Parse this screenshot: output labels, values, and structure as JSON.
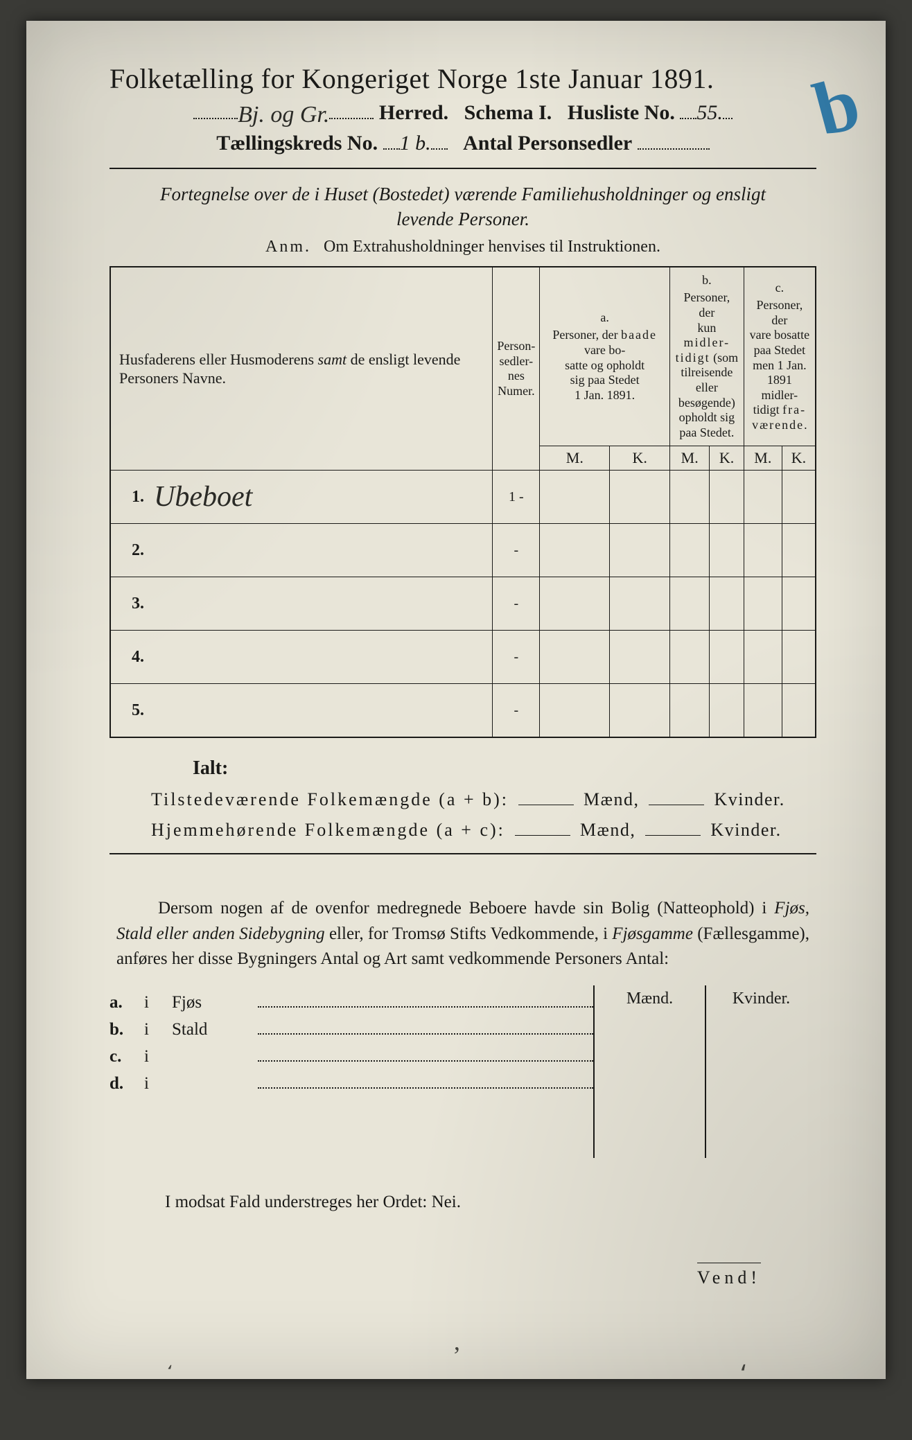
{
  "colors": {
    "paper": "#e8e5d8",
    "ink": "#1a1a18",
    "blue_mark": "#1f6ea0",
    "frame": "#3a3a36"
  },
  "typography": {
    "title_size_pt": 40,
    "subline_size_pt": 30,
    "intro_size_pt": 27,
    "table_body_size_pt": 20,
    "totals_size_pt": 26,
    "para_size_pt": 25,
    "vend_size_pt": 26
  },
  "header": {
    "title": "Folketælling for Kongeriget Norge 1ste Januar 1891.",
    "herred_hand": "Bj. og Gr.",
    "herred_label": "Herred.",
    "schema": "Schema I.",
    "husliste_label": "Husliste No.",
    "husliste_hand": "55.",
    "blue_mark": "b",
    "kreds_label": "Tællingskreds No.",
    "kreds_hand": "1 b.",
    "antal_label": "Antal Personsedler"
  },
  "intro": {
    "line": "Fortegnelse over de i Huset (Bostedet) værende Familiehusholdninger og ensligt levende Personer.",
    "anm_prefix": "Anm.",
    "anm_text": "Om Extrahusholdninger henvises til Instruktionen."
  },
  "table": {
    "col1": "Husfaderens eller Husmoderens samt de ensligt levende Personers Navne.",
    "col1_italic_word": "samt",
    "col2": "Person-\nsedler-\nnes\nNumer.",
    "group_a_label": "a.",
    "group_a_text": "Personer, der baade vare bosatte og opholdt sig paa Stedet 1 Jan. 1891.",
    "group_a_spaced": "baade",
    "group_b_label": "b.",
    "group_b_text": "Personer, der kun midlertidigt (som tilreisende eller besøgende) opholdt sig paa Stedet.",
    "group_b_spaced": "midler-",
    "group_c_label": "c.",
    "group_c_text": "Personer, der vare bosatte paa Stedet men 1 Jan. 1891 midlertidigt fraværende.",
    "group_c_spaced": "fra-\nværende",
    "M": "M.",
    "K": "K.",
    "row_count": 5,
    "rows": [
      {
        "n": "1.",
        "name_hand": "Ubeboet",
        "personsedler": "1 -"
      },
      {
        "n": "2.",
        "name_hand": "",
        "personsedler": "-"
      },
      {
        "n": "3.",
        "name_hand": "",
        "personsedler": "-"
      },
      {
        "n": "4.",
        "name_hand": "",
        "personsedler": "-"
      },
      {
        "n": "5.",
        "name_hand": "",
        "personsedler": "-"
      }
    ]
  },
  "totals": {
    "ialt": "Ialt:",
    "line1_label": "Tilstedeværende Folkemængde (a + b):",
    "line2_label": "Hjemmehørende Folkemængde (a + c):",
    "maend": "Mænd,",
    "kvinder": "Kvinder."
  },
  "para": {
    "text_1": "Dersom nogen af de ovenfor medregnede Beboere havde sin Bolig (Natteophold) i ",
    "it_1": "Fjøs, Stald eller anden Sidebygning",
    "text_2": " eller, for Tromsø Stifts Vedkommende, i ",
    "it_2": "Fjøsgamme",
    "text_3": " (Fællesgamme), anføres her disse Bygningers Antal og Art samt vedkommende Personers Antal:"
  },
  "bottom_table": {
    "rows": [
      {
        "key": "a.",
        "i": "i",
        "label": "Fjøs"
      },
      {
        "key": "b.",
        "i": "i",
        "label": "Stald"
      },
      {
        "key": "c.",
        "i": "i",
        "label": ""
      },
      {
        "key": "d.",
        "i": "i",
        "label": ""
      }
    ],
    "head_m": "Mænd.",
    "head_k": "Kvinder."
  },
  "footnote": "I modsat Fald understreges her Ordet: Nei.",
  "vend": "Vend!"
}
